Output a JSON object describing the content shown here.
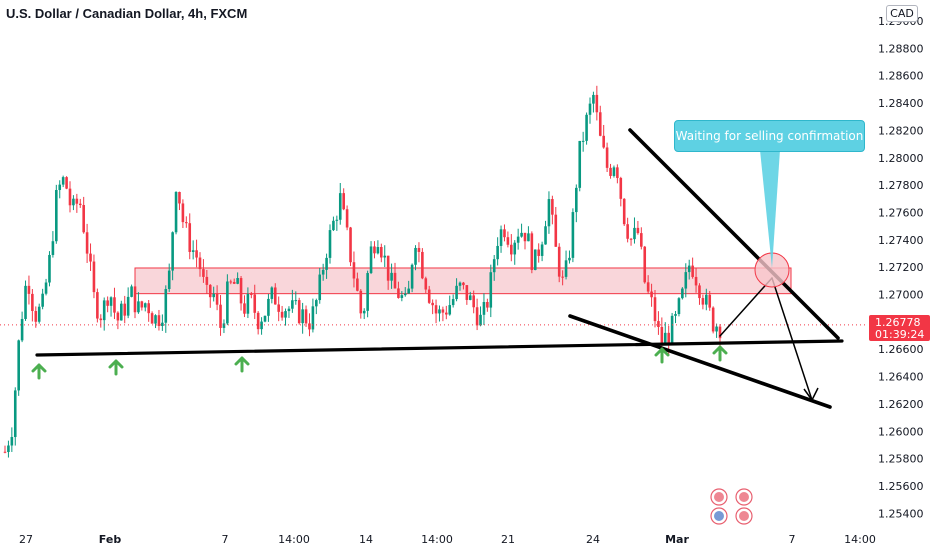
{
  "header": {
    "title": "U.S. Dollar / Canadian Dollar, 4h, FXCM",
    "currency": "CAD"
  },
  "price_tag": {
    "price": "1.26778",
    "countdown": "01:39:24",
    "color": "#f23645"
  },
  "callout": {
    "text": "Waiting for selling confirmation",
    "color": "#5ed1e3"
  },
  "colors": {
    "up": "#089981",
    "down": "#f23645",
    "zone": "#f7c5cb",
    "arrow": "#4caf50",
    "line": "#000000"
  },
  "chart_data": {
    "type": "candlestick",
    "title": "U.S. Dollar / Canadian Dollar, 4h, FXCM",
    "xlabel": "",
    "ylabel": "",
    "ylim": [
      1.2532,
      1.2914
    ],
    "yticks": [
      "1.25400",
      "1.25600",
      "1.25800",
      "1.26000",
      "1.26200",
      "1.26400",
      "1.26600",
      "1.26800",
      "1.27000",
      "1.27200",
      "1.27400",
      "1.27600",
      "1.27800",
      "1.28000",
      "1.28200",
      "1.28400",
      "1.28600",
      "1.28800",
      "1.29000"
    ],
    "xticks": [
      {
        "label": "27",
        "bold": false
      },
      {
        "label": "Feb",
        "bold": true
      },
      {
        "label": "7",
        "bold": false
      },
      {
        "label": "14:00",
        "bold": false
      },
      {
        "label": "14",
        "bold": false
      },
      {
        "label": "14:00",
        "bold": false
      },
      {
        "label": "21",
        "bold": false
      },
      {
        "label": "24",
        "bold": false
      },
      {
        "label": "Mar",
        "bold": true
      },
      {
        "label": "7",
        "bold": false
      },
      {
        "label": "14:00",
        "bold": false
      }
    ],
    "last_price": 1.26778,
    "candles_path": [
      1.2585,
      1.2605,
      1.2675,
      1.2715,
      1.2685,
      1.269,
      1.2725,
      1.2775,
      1.2785,
      1.276,
      1.277,
      1.2735,
      1.2695,
      1.2685,
      1.2705,
      1.268,
      1.269,
      1.27,
      1.2688,
      1.2695,
      1.2682,
      1.2685,
      1.271,
      1.2785,
      1.275,
      1.2735,
      1.2725,
      1.2698,
      1.27,
      1.2675,
      1.2705,
      1.2708,
      1.269,
      1.2695,
      1.2682,
      1.2688,
      1.27,
      1.2692,
      1.269,
      1.2688,
      1.2685,
      1.268,
      1.2698,
      1.273,
      1.275,
      1.277,
      1.274,
      1.271,
      1.268,
      1.273,
      1.2745,
      1.2725,
      1.2705,
      1.27,
      1.269,
      1.2745,
      1.272,
      1.27,
      1.2685,
      1.2688,
      1.2695,
      1.2705,
      1.27,
      1.269,
      1.268,
      1.27,
      1.274,
      1.275,
      1.2738,
      1.2748,
      1.2745,
      1.272,
      1.274,
      1.277,
      1.273,
      1.2705,
      1.274,
      1.28,
      1.2825,
      1.2845,
      1.281,
      1.279,
      1.28,
      1.276,
      1.274,
      1.2745,
      1.2705,
      1.269,
      1.2665,
      1.267,
      1.268,
      1.27,
      1.2725,
      1.271,
      1.2695,
      1.268,
      1.2677
    ],
    "annotations": [
      {
        "type": "horizontal_zone",
        "from": 1.2705,
        "to": 1.2715
      },
      {
        "type": "support_line",
        "from": [
          0,
          1.2655
        ],
        "to": [
          1,
          1.2665
        ]
      },
      {
        "type": "descending_trendline",
        "from": 1.282,
        "to": 1.2665
      },
      {
        "type": "descending_trendline",
        "from": 1.2683,
        "to": 1.2615
      },
      {
        "type": "bounce_arrows",
        "count": 5
      }
    ]
  }
}
